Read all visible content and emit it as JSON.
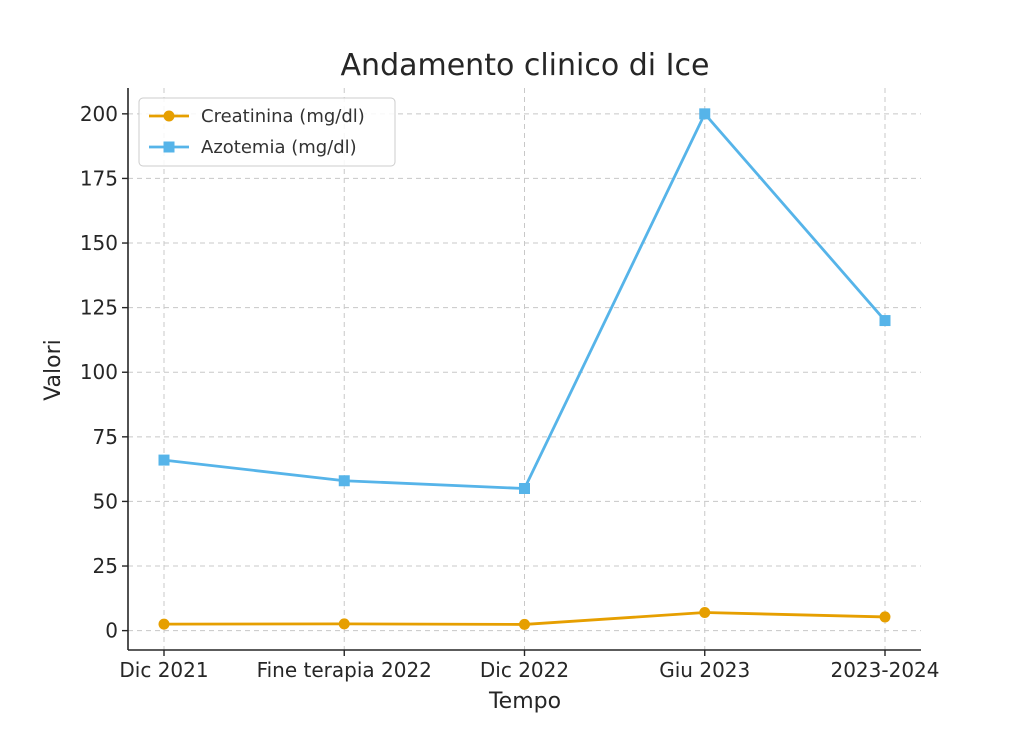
{
  "chart_data": {
    "type": "line",
    "title": "Andamento clinico di Ice",
    "xlabel": "Tempo",
    "ylabel": "Valori",
    "categories": [
      "Dic 2021",
      "Fine terapia 2022",
      "Dic 2022",
      "Giu 2023",
      "2023-2024"
    ],
    "yticks": [
      0,
      25,
      50,
      75,
      100,
      125,
      150,
      175,
      200
    ],
    "ylim": [
      -7.5,
      210
    ],
    "grid": true,
    "legend_position": "top-left",
    "series": [
      {
        "name": "Creatinina (mg/dl)",
        "values": [
          2.5,
          2.6,
          2.4,
          7.0,
          5.3
        ],
        "color": "#E69F00",
        "marker": "circle"
      },
      {
        "name": "Azotemia (mg/dl)",
        "values": [
          66,
          58,
          55,
          200,
          120
        ],
        "color": "#56B4E9",
        "marker": "square"
      }
    ]
  }
}
